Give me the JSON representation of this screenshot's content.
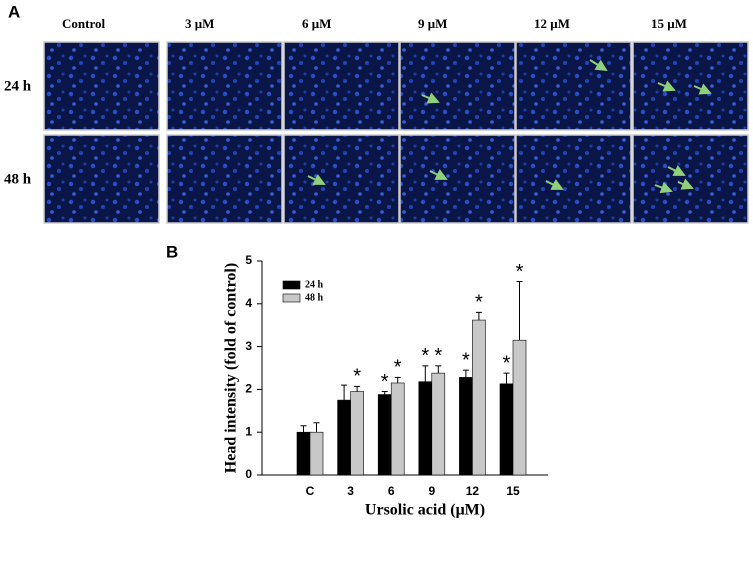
{
  "panel_a": {
    "label": "A",
    "columns": [
      "Control",
      "3 μM",
      "6 μM",
      "9 μM",
      "12 μM",
      "15 μM"
    ],
    "rows": [
      "24 h",
      "48 h"
    ]
  },
  "chart_data": {
    "type": "bar",
    "label": "B",
    "ylabel": "Head intensity (fold of control)",
    "xlabel": "Ursolic acid (μM)",
    "categories": [
      "C",
      "3",
      "6",
      "9",
      "12",
      "15"
    ],
    "series": [
      {
        "name": "24 h",
        "color": "#000000",
        "values": [
          1.0,
          1.75,
          1.88,
          2.18,
          2.28,
          2.13
        ],
        "errors": [
          0.15,
          0.35,
          0.07,
          0.37,
          0.17,
          0.25
        ],
        "significance": [
          null,
          null,
          "*",
          "*",
          "*",
          "*"
        ]
      },
      {
        "name": "48 h",
        "color": "#c8c8c8",
        "values": [
          1.0,
          1.95,
          2.15,
          2.38,
          3.62,
          3.15
        ],
        "errors": [
          0.22,
          0.12,
          0.13,
          0.17,
          0.18,
          1.37
        ],
        "significance": [
          null,
          "*",
          "*",
          "*",
          "*",
          "*"
        ]
      }
    ],
    "ylim": [
      0,
      5
    ],
    "yticks": [
      0,
      1,
      2,
      3,
      4,
      5
    ],
    "grid": false,
    "legend": "upper-left"
  }
}
